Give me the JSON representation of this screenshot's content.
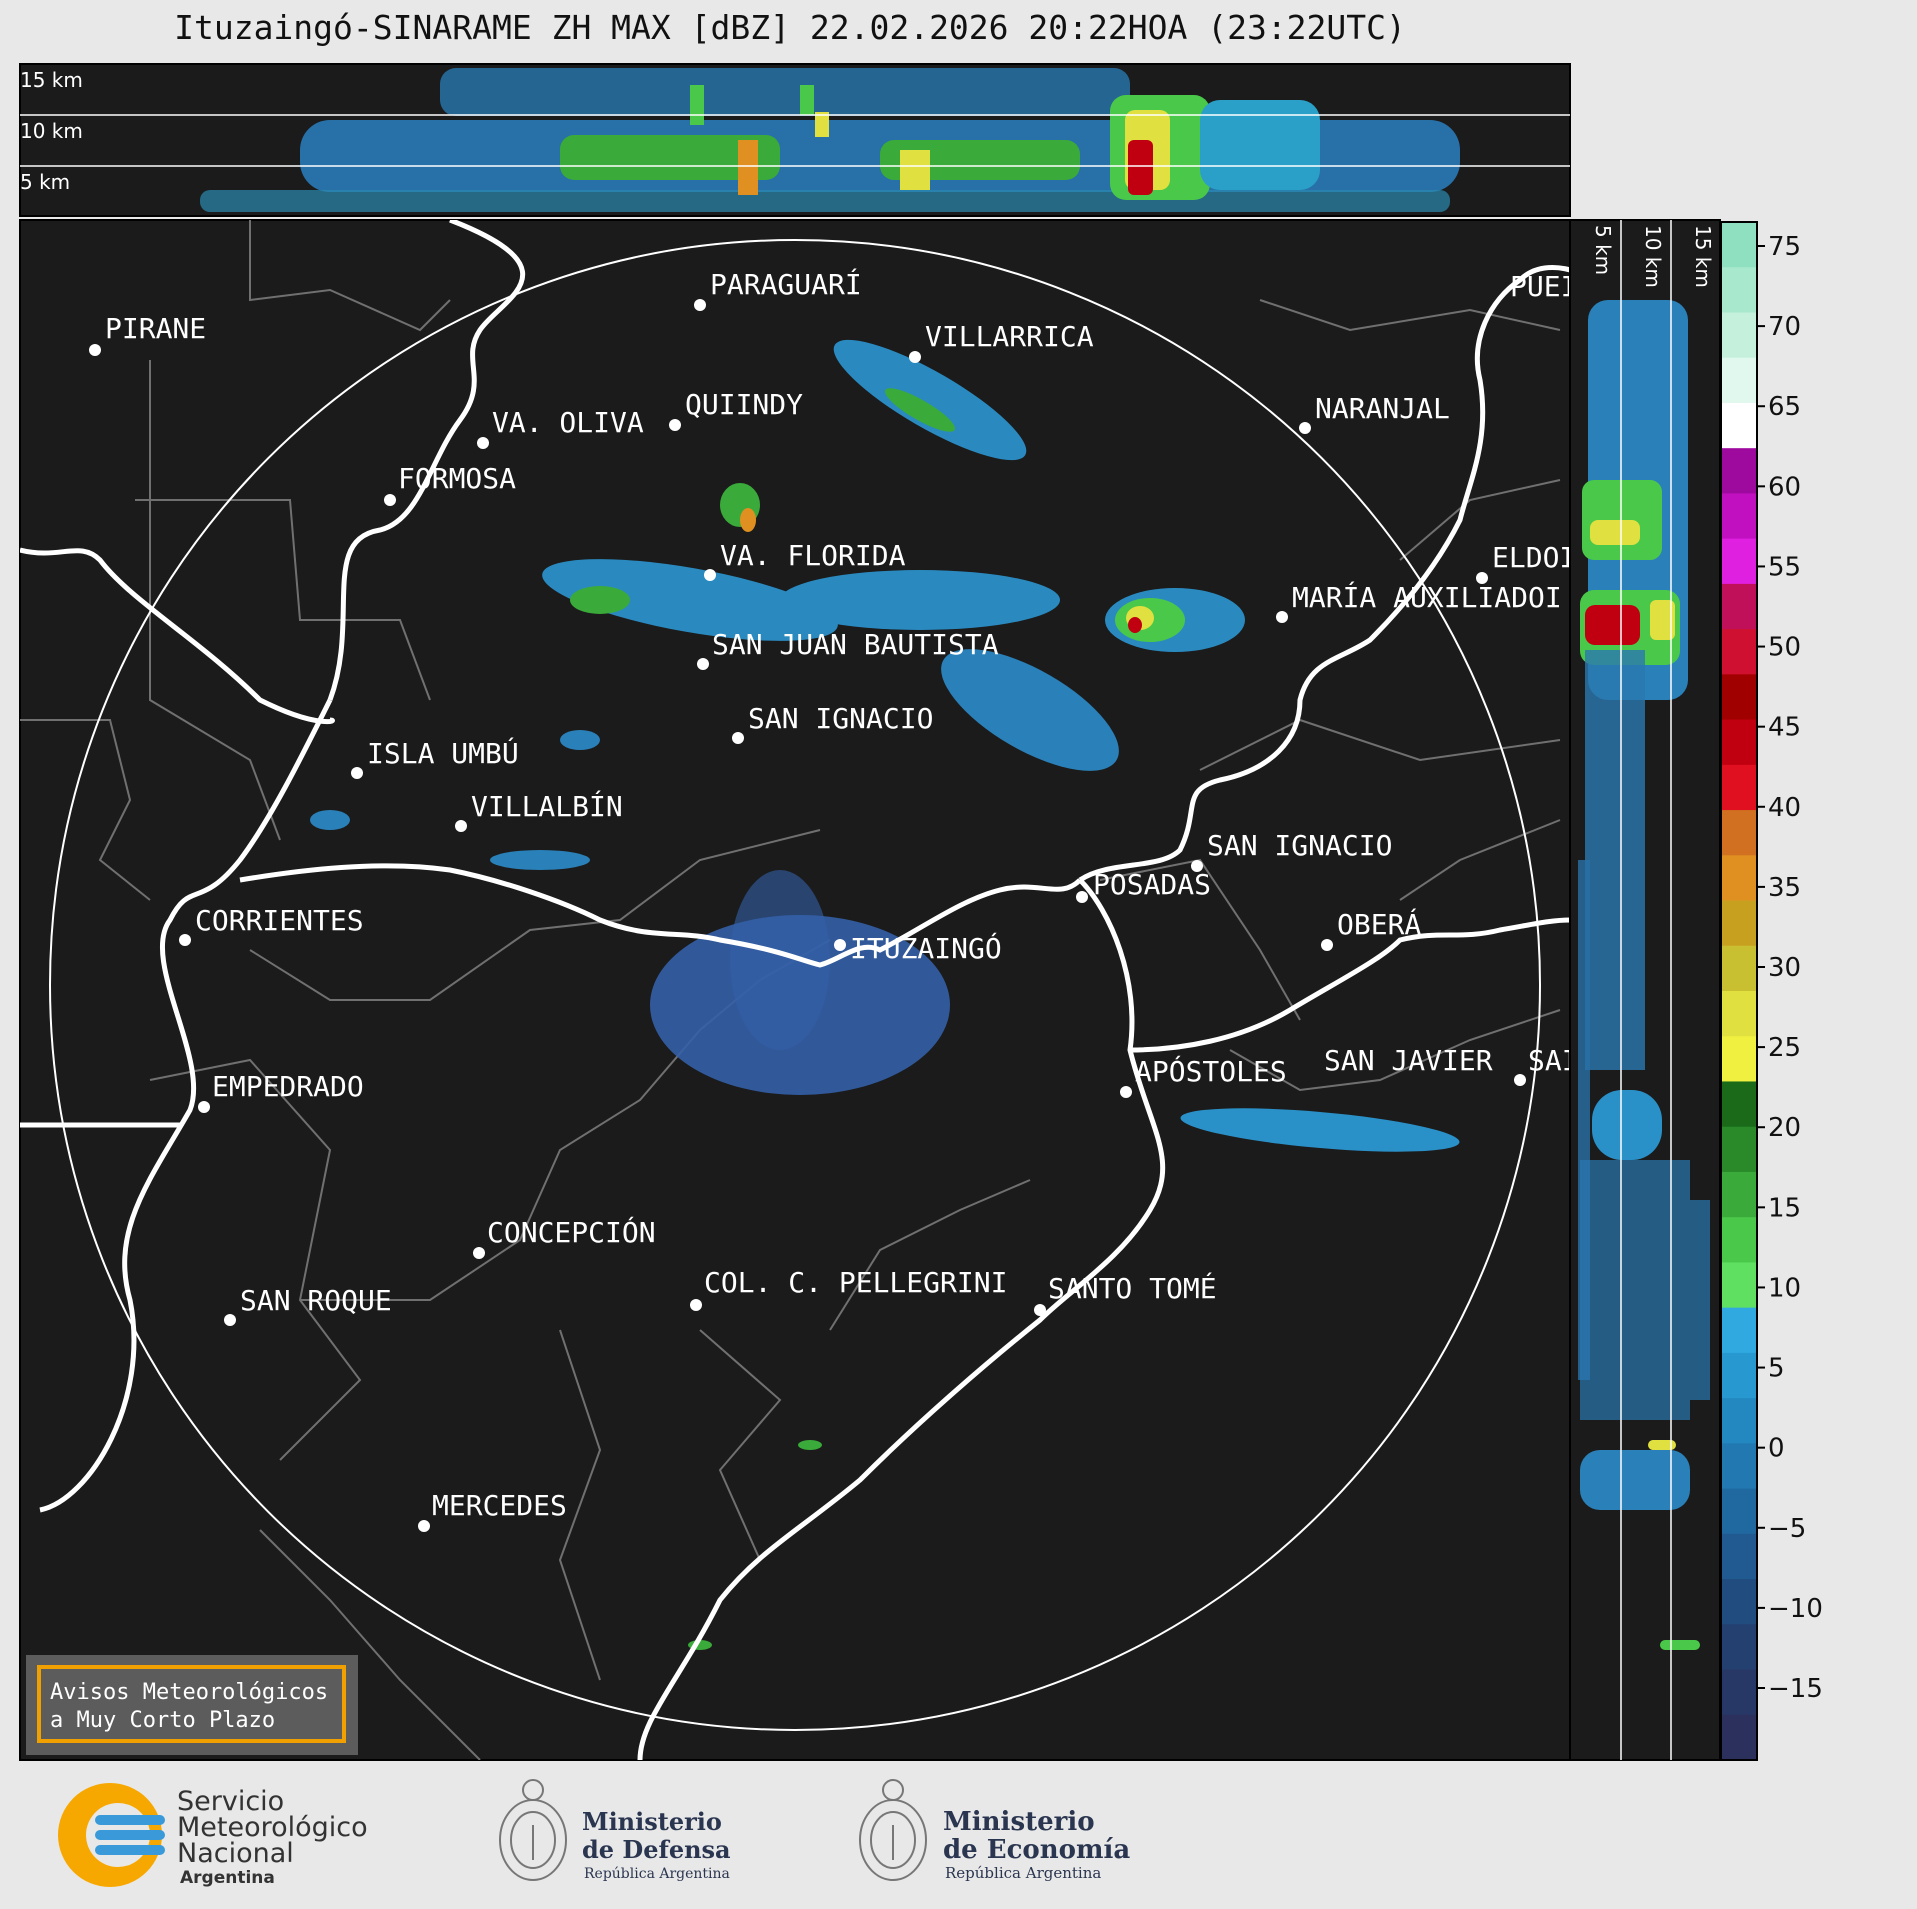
{
  "title": "Ituzaingó-SINARAME ZH MAX [dBZ] 22.02.2026 20:22HOA (23:22UTC)",
  "top_panel": {
    "levels": [
      "15 km",
      "10 km",
      "5 km"
    ]
  },
  "side_panel": {
    "levels": [
      "5 km",
      "10 km",
      "15 km"
    ]
  },
  "colorbar": {
    "ticks": [
      "75",
      "70",
      "65",
      "60",
      "55",
      "50",
      "45",
      "40",
      "35",
      "30",
      "25",
      "20",
      "15",
      "10",
      "5",
      "0",
      "−5",
      "−10",
      "−15"
    ],
    "colors": [
      "#8ee0c0",
      "#a8e8cc",
      "#c4f0dc",
      "#e0f8ee",
      "#ffffff",
      "#9e0a9e",
      "#c010c0",
      "#e020e0",
      "#c0105a",
      "#d01030",
      "#a00000",
      "#c00010",
      "#e01020",
      "#d07020",
      "#e09020",
      "#c8a020",
      "#c8c030",
      "#e0e040",
      "#f0f040",
      "#1a6a1a",
      "#2a8a2a",
      "#3aaa3a",
      "#4ac84a",
      "#60e060",
      "#30a8e0",
      "#2898d0",
      "#2488c0",
      "#2278b0",
      "#2068a0",
      "#205a90",
      "#204c80",
      "#244070",
      "#283866",
      "#2c305c"
    ]
  },
  "cities": [
    {
      "name": "PARAGUARÍ"
    },
    {
      "name": "PIRANE"
    },
    {
      "name": "VILLARRICA"
    },
    {
      "name": "VA. OLIVA"
    },
    {
      "name": "QUIINDY"
    },
    {
      "name": "NARANJAL"
    },
    {
      "name": "FORMOSA"
    },
    {
      "name": "PUEI"
    },
    {
      "name": "VA. FLORIDA"
    },
    {
      "name": "ELDOI"
    },
    {
      "name": "MARÍA AUXILIADOI"
    },
    {
      "name": "SAN JUAN BAUTISTA"
    },
    {
      "name": "SAN IGNACIO"
    },
    {
      "name": "ISLA UMBÚ"
    },
    {
      "name": "VILLALBÍN"
    },
    {
      "name": "SAN IGNACIO"
    },
    {
      "name": "POSADAS"
    },
    {
      "name": "CORRIENTES"
    },
    {
      "name": "ITUZAINGÓ"
    },
    {
      "name": "OBERÁ"
    },
    {
      "name": "EMPEDRADO"
    },
    {
      "name": "APÓSTOLES"
    },
    {
      "name": "SAN JAVIER"
    },
    {
      "name": "SAI"
    },
    {
      "name": "CONCEPCIÓN"
    },
    {
      "name": "COL. C. PELLEGRINI"
    },
    {
      "name": "SANTO TOMÉ"
    },
    {
      "name": "SAN ROQUE"
    },
    {
      "name": "MERCEDES"
    }
  ],
  "warning_box": {
    "line1": "Avisos Meteorológicos",
    "line2": "a Muy Corto Plazo"
  },
  "logos": {
    "smn": {
      "line1": "Servicio",
      "line2": "Meteorológico",
      "line3": "Nacional",
      "line4": "Argentina"
    },
    "defensa": {
      "line1": "Ministerio",
      "line2": "de Defensa",
      "line3": "República Argentina"
    },
    "economia": {
      "line1": "Ministerio",
      "line2": "de Economía",
      "line3": "República Argentina"
    }
  }
}
